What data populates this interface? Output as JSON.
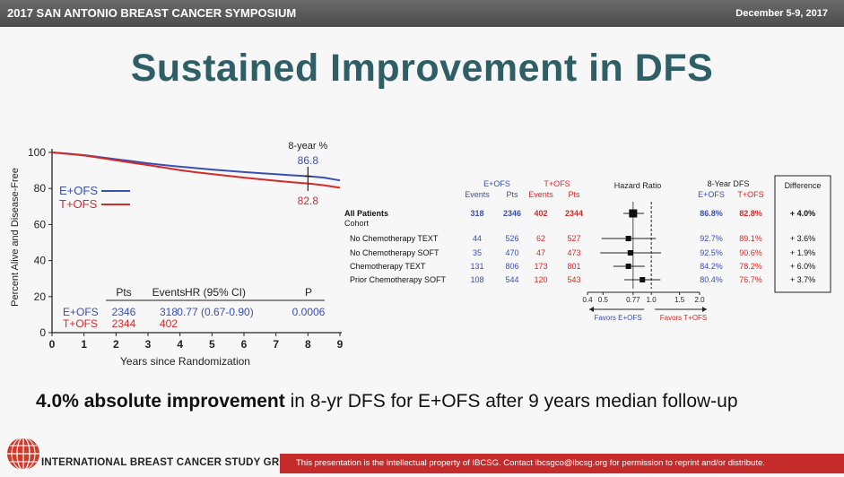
{
  "header": {
    "conference": "2017 SAN ANTONIO BREAST CANCER SYMPOSIUM",
    "dates": "December 5-9, 2017"
  },
  "slide": {
    "title": "Sustained Improvement in DFS",
    "conclusion_bold": "4.0% absolute improvement",
    "conclusion_rest": " in 8-yr DFS for E+OFS after 9 years median follow-up"
  },
  "footer": {
    "org": "INTERNATIONAL BREAST CANCER STUDY GROUP",
    "legal": "This presentation is the intellectual property of IBCSG. Contact ibcsgco@ibcsg.org for permission to reprint and/or distribute."
  },
  "colors": {
    "eofs": "#3a4fb0",
    "tofs": "#d42a2a",
    "title": "#2f5f66"
  },
  "chart_data": [
    {
      "type": "line",
      "xlabel": "Years since Randomization",
      "ylabel": "Percent Alive and Disease-Free",
      "xlim": [
        0,
        9
      ],
      "ylim": [
        0,
        100
      ],
      "xticks": [
        "0",
        "1",
        "2",
        "3",
        "4",
        "5",
        "6",
        "7",
        "8",
        "9"
      ],
      "yticks": [
        "0",
        "20",
        "40",
        "60",
        "80",
        "100"
      ],
      "marker_label": "8-year %",
      "series": [
        {
          "name": "E+OFS",
          "color": "#3a4fb0",
          "x": [
            0,
            0.5,
            1,
            1.5,
            2,
            2.5,
            3,
            3.5,
            4,
            4.5,
            5,
            5.5,
            6,
            6.5,
            7,
            7.5,
            8,
            8.5,
            9
          ],
          "y": [
            100,
            99.3,
            98.5,
            97.4,
            96.2,
            95.1,
            94.0,
            93.0,
            92.1,
            91.3,
            90.5,
            89.8,
            89.1,
            88.5,
            87.9,
            87.3,
            86.8,
            86.0,
            84.5
          ],
          "value_at_8": "86.8"
        },
        {
          "name": "T+OFS",
          "color": "#d42a2a",
          "x": [
            0,
            0.5,
            1,
            1.5,
            2,
            2.5,
            3,
            3.5,
            4,
            4.5,
            5,
            5.5,
            6,
            6.5,
            7,
            7.5,
            8,
            8.5,
            9
          ],
          "y": [
            100,
            99.2,
            98.3,
            97.0,
            95.6,
            94.3,
            93.0,
            91.6,
            90.2,
            89.0,
            88.0,
            87.0,
            86.0,
            85.1,
            84.3,
            83.5,
            82.8,
            81.8,
            80.4
          ],
          "value_at_8": "82.8"
        }
      ],
      "summary_table": {
        "headers": [
          "",
          "Pts",
          "Events",
          "HR (95% CI)",
          "P"
        ],
        "rows": [
          {
            "arm": "E+OFS",
            "pts": "2346",
            "events": "318",
            "hr": "0.77 (0.67-0.90)",
            "p": "0.0006"
          },
          {
            "arm": "T+OFS",
            "pts": "2344",
            "events": "402",
            "hr": "",
            "p": ""
          }
        ]
      }
    },
    {
      "type": "forest",
      "title": "Hazard Ratio",
      "col_headers": {
        "eofs_group": "E+OFS",
        "tofs_group": "T+OFS",
        "events": "Events",
        "pts": "Pts",
        "dfs_group": "8-Year DFS",
        "difference": "Difference"
      },
      "cohort_label": "Cohort",
      "xticks": [
        0.4,
        0.5,
        0.77,
        1.0,
        1.5,
        2.0
      ],
      "xtick_labels": [
        "0.4",
        "0.5",
        "0.77",
        "1.0",
        "1.5",
        "2.0"
      ],
      "xlim": [
        0.4,
        2.0
      ],
      "favors_left": "Favors E+OFS",
      "favors_right": "Favors T+OFS",
      "rows": [
        {
          "label": "All Patients",
          "bold": true,
          "e_events": "318",
          "e_pts": "2346",
          "t_events": "402",
          "t_pts": "2344",
          "hr": 0.77,
          "lo": 0.67,
          "hi": 0.9,
          "e_dfs": "86.8%",
          "t_dfs": "82.8%",
          "diff": "+ 4.0%"
        },
        {
          "label": "No Chemotherapy TEXT",
          "bold": false,
          "e_events": "44",
          "e_pts": "526",
          "t_events": "62",
          "t_pts": "527",
          "hr": 0.72,
          "lo": 0.49,
          "hi": 1.07,
          "e_dfs": "92.7%",
          "t_dfs": "89.1%",
          "diff": "+ 3.6%"
        },
        {
          "label": "No Chemotherapy SOFT",
          "bold": false,
          "e_events": "35",
          "e_pts": "470",
          "t_events": "47",
          "t_pts": "473",
          "hr": 0.74,
          "lo": 0.48,
          "hi": 1.15,
          "e_dfs": "92.5%",
          "t_dfs": "90.6%",
          "diff": "+ 1.9%"
        },
        {
          "label": "Chemotherapy TEXT",
          "bold": false,
          "e_events": "131",
          "e_pts": "806",
          "t_events": "173",
          "t_pts": "801",
          "hr": 0.72,
          "lo": 0.58,
          "hi": 0.91,
          "e_dfs": "84.2%",
          "t_dfs": "78.2%",
          "diff": "+ 6.0%"
        },
        {
          "label": "Prior Chemotherapy SOFT",
          "bold": false,
          "e_events": "108",
          "e_pts": "544",
          "t_events": "120",
          "t_pts": "543",
          "hr": 0.88,
          "lo": 0.68,
          "hi": 1.14,
          "e_dfs": "80.4%",
          "t_dfs": "76.7%",
          "diff": "+ 3.7%"
        }
      ]
    }
  ]
}
